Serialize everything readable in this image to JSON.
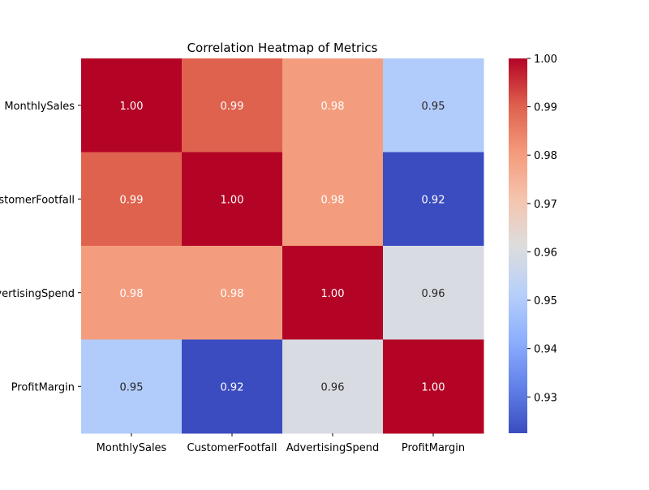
{
  "chart_data": {
    "type": "heatmap",
    "title": "Correlation Heatmap of Metrics",
    "xlabel": "",
    "ylabel": "",
    "x_labels": [
      "MonthlySales",
      "CustomerFootfall",
      "AdvertisingSpend",
      "ProfitMargin"
    ],
    "y_labels": [
      "MonthlySales",
      "CustomerFootfall",
      "AdvertisingSpend",
      "ProfitMargin"
    ],
    "values": [
      [
        1.0,
        0.99,
        0.98,
        0.95
      ],
      [
        0.99,
        1.0,
        0.98,
        0.92
      ],
      [
        0.98,
        0.98,
        1.0,
        0.96
      ],
      [
        0.95,
        0.92,
        0.96,
        1.0
      ]
    ],
    "value_labels": [
      [
        "1.00",
        "0.99",
        "0.98",
        "0.95"
      ],
      [
        "0.99",
        "1.00",
        "0.98",
        "0.92"
      ],
      [
        "0.98",
        "0.98",
        "1.00",
        "0.96"
      ],
      [
        "0.95",
        "0.92",
        "0.96",
        "1.00"
      ]
    ],
    "annotation_colors": [
      [
        "#ffffff",
        "#ffffff",
        "#ffffff",
        "#262626"
      ],
      [
        "#ffffff",
        "#ffffff",
        "#ffffff",
        "#ffffff"
      ],
      [
        "#ffffff",
        "#ffffff",
        "#ffffff",
        "#262626"
      ],
      [
        "#262626",
        "#ffffff",
        "#262626",
        "#ffffff"
      ]
    ],
    "colormap": "coolwarm",
    "vmin": 0.9225,
    "vmax": 1.0,
    "colorbar_ticks": [
      {
        "value": 1.0,
        "label": "1.00"
      },
      {
        "value": 0.99,
        "label": "0.99"
      },
      {
        "value": 0.98,
        "label": "0.98"
      },
      {
        "value": 0.97,
        "label": "0.97"
      },
      {
        "value": 0.96,
        "label": "0.96"
      },
      {
        "value": 0.95,
        "label": "0.95"
      },
      {
        "value": 0.94,
        "label": "0.94"
      },
      {
        "value": 0.93,
        "label": "0.93"
      }
    ],
    "grid": false
  }
}
